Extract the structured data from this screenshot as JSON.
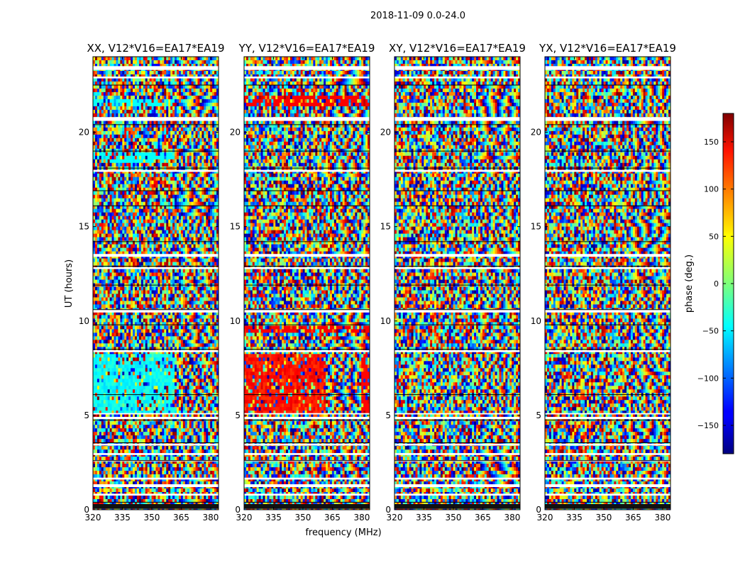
{
  "chart_data": {
    "type": "heatmap",
    "title": "2018-11-09 0.0-24.0",
    "xlabel": "frequency (MHz)",
    "ylabel": "UT (hours)",
    "x_ticks": [
      320,
      335,
      350,
      365,
      380
    ],
    "xlim": [
      320,
      384
    ],
    "y_ticks": [
      0,
      5,
      10,
      15,
      20
    ],
    "ylim": [
      0,
      24
    ],
    "panels": [
      {
        "title": "XX, V12*V16=EA17*EA19",
        "feature": "cyan"
      },
      {
        "title": "YY, V12*V16=EA17*EA19",
        "feature": "red"
      },
      {
        "title": "XY, V12*V16=EA17*EA19",
        "feature": "none"
      },
      {
        "title": "YX, V12*V16=EA17*EA19",
        "feature": "none"
      }
    ],
    "colorbar": {
      "label": "phase (deg.)",
      "ticks": [
        -150,
        -100,
        -50,
        0,
        50,
        100,
        150
      ],
      "range": [
        -180,
        180
      ],
      "colormap": "jet"
    },
    "flagged_ut_bands_hours": [
      [
        0.05,
        0.3
      ],
      [
        0.75,
        0.85
      ],
      [
        1.2,
        1.35
      ],
      [
        1.6,
        1.7
      ],
      [
        2.55,
        2.62
      ],
      [
        2.9,
        3.0
      ],
      [
        3.4,
        3.5
      ],
      [
        4.8,
        4.92
      ],
      [
        5.05,
        5.12
      ],
      [
        8.35,
        8.45
      ],
      [
        10.45,
        10.62
      ],
      [
        12.75,
        12.85
      ],
      [
        13.4,
        13.55
      ],
      [
        17.9,
        18.0
      ],
      [
        20.6,
        20.8
      ],
      [
        22.85,
        22.95
      ],
      [
        23.3,
        23.5
      ]
    ],
    "pattern_change_frequency_mhz": 361.5
  }
}
